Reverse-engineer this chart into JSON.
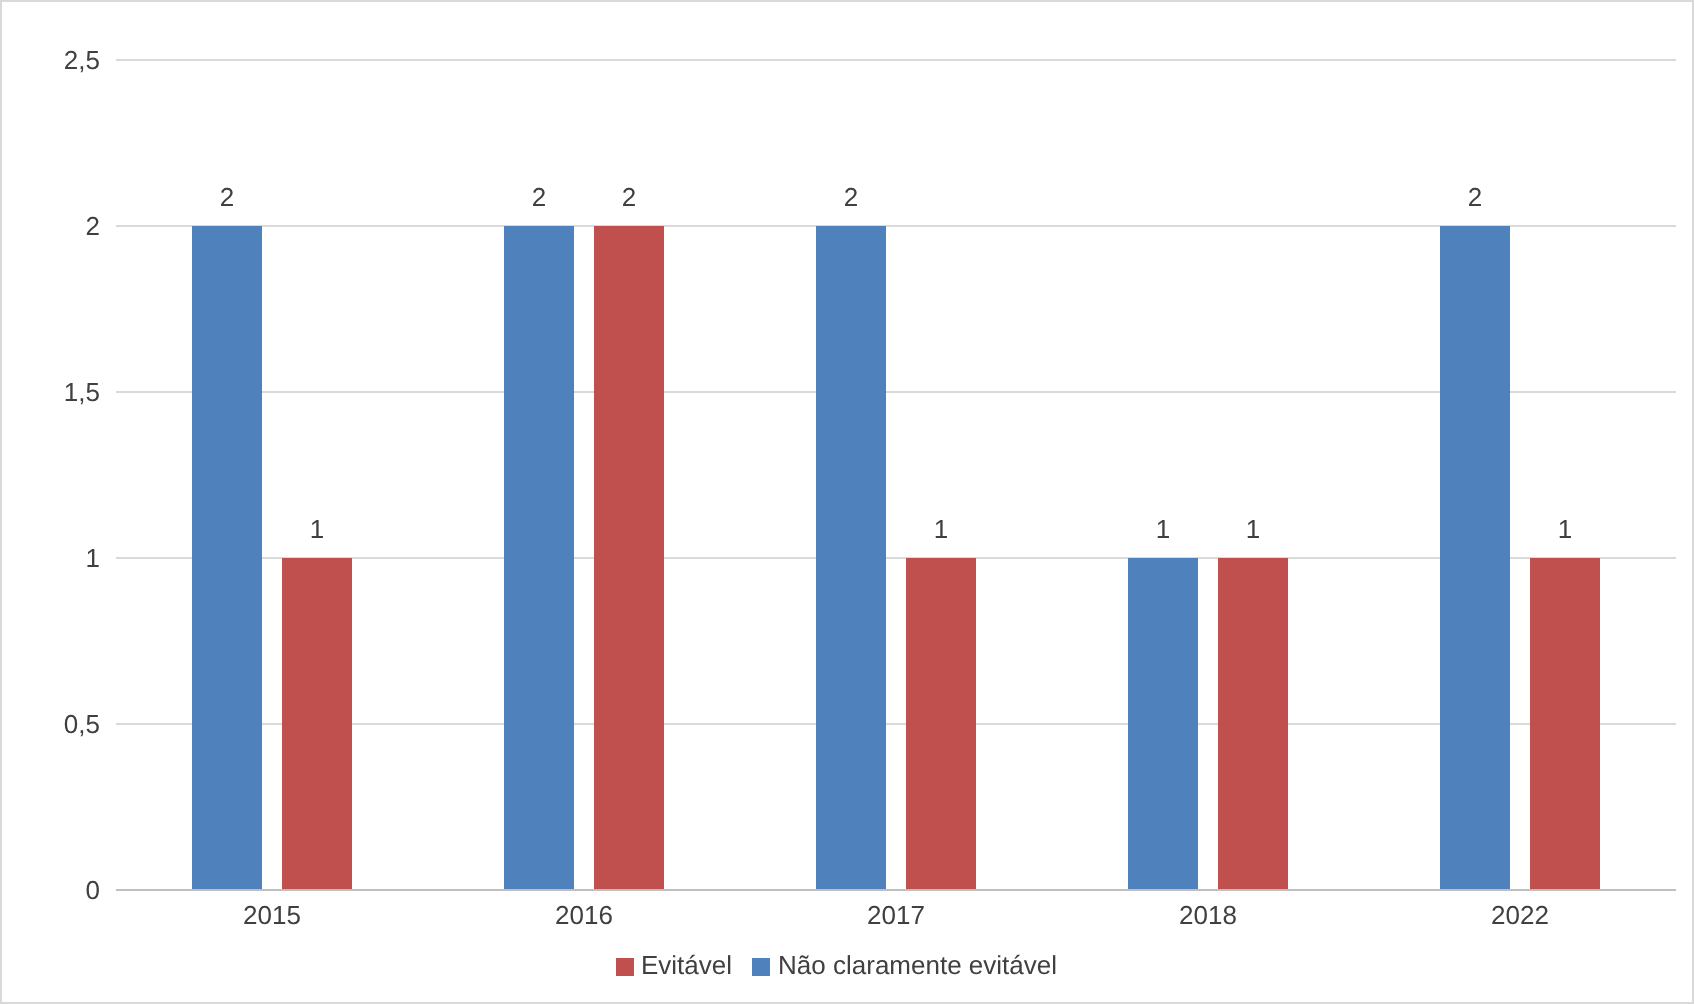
{
  "chart_data": {
    "type": "bar",
    "categories": [
      "2015",
      "2016",
      "2017",
      "2018",
      "2022"
    ],
    "series": [
      {
        "name": "Não claramente evitável",
        "color": "#4f81bd",
        "values": [
          2,
          2,
          2,
          1,
          2
        ]
      },
      {
        "name": "Evitável",
        "color": "#c0504d",
        "values": [
          1,
          2,
          1,
          1,
          1
        ]
      }
    ],
    "ylim": [
      0,
      2.5
    ],
    "yticks": [
      0,
      {
        "value": 0.5,
        "label": "0,5"
      },
      1,
      {
        "value": 1.5,
        "label": "1,5"
      },
      2,
      {
        "value": 2.5,
        "label": "2,5"
      }
    ],
    "grid": "y",
    "legend": "bottom",
    "data_labels": true
  }
}
